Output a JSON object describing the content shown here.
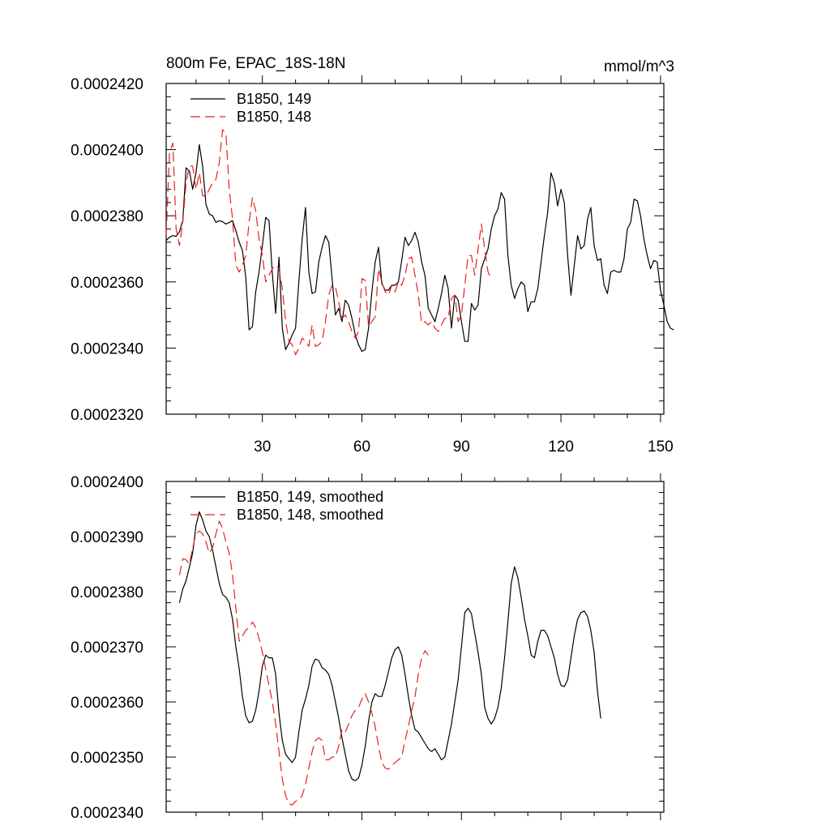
{
  "chart_data": [
    {
      "type": "line",
      "title": "800m Fe, EPAC_18S-18N",
      "units": "mmol/m^3",
      "xlim": [
        1,
        151
      ],
      "ylim": [
        0.000232,
        0.000242
      ],
      "yticks": [
        "0.0002320",
        "0.0002340",
        "0.0002360",
        "0.0002380",
        "0.0002400",
        "0.0002420"
      ],
      "ytick_values": [
        0.000232,
        0.000234,
        0.000236,
        0.000238,
        0.00024,
        0.000242
      ],
      "xticks": [
        "30",
        "60",
        "90",
        "120",
        "150"
      ],
      "xtick_values": [
        30,
        60,
        90,
        120,
        150
      ],
      "legend_position": "top-left",
      "series": [
        {
          "name": "B1850, 149",
          "color": "#000000",
          "dash": "solid",
          "x_start": 1,
          "values": [
            2.3725,
            2.3735,
            2.374,
            2.3738,
            2.3752,
            2.3785,
            2.3945,
            2.3935,
            2.388,
            2.393,
            2.4015,
            2.395,
            2.3835,
            2.3805,
            2.38,
            2.378,
            2.3785,
            2.3782,
            2.3775,
            2.378,
            2.3785,
            2.3755,
            2.372,
            2.3695,
            2.3615,
            2.3455,
            2.3465,
            2.357,
            2.363,
            2.371,
            2.3795,
            2.3785,
            2.3625,
            2.3505,
            2.3675,
            2.346,
            2.3395,
            2.3415,
            2.344,
            2.346,
            2.36,
            2.373,
            2.3825,
            2.363,
            2.3565,
            2.357,
            2.366,
            2.3705,
            2.374,
            2.372,
            2.361,
            2.35,
            2.352,
            2.348,
            2.3545,
            2.353,
            2.349,
            2.344,
            2.341,
            2.339,
            2.3395,
            2.346,
            2.357,
            2.366,
            2.3705,
            2.3595,
            2.3575,
            2.3575,
            2.359,
            2.359,
            2.36,
            2.3665,
            2.3735,
            2.371,
            2.3725,
            2.375,
            2.372,
            2.366,
            2.362,
            2.352,
            2.35,
            2.348,
            2.352,
            2.3565,
            2.362,
            2.358,
            2.346,
            2.356,
            2.3545,
            2.348,
            2.342,
            2.342,
            2.3535,
            2.3515,
            2.353,
            2.364,
            2.367,
            2.37,
            2.376,
            2.38,
            2.382,
            2.387,
            2.385,
            2.368,
            2.359,
            2.355,
            2.358,
            2.36,
            2.359,
            2.351,
            2.354,
            2.354,
            2.358,
            2.366,
            2.374,
            2.381,
            2.393,
            2.39,
            2.383,
            2.388,
            2.384,
            2.368,
            2.356,
            2.365,
            2.374,
            2.37,
            2.371,
            2.379,
            2.3825,
            2.371,
            2.3665,
            2.367,
            2.359,
            2.3565,
            2.363,
            2.3635,
            2.363,
            2.363,
            2.367,
            2.376,
            2.378,
            2.385,
            2.3845,
            2.38,
            2.373,
            2.368,
            2.364,
            2.3665,
            2.366,
            2.3575,
            2.353,
            2.348,
            2.346,
            2.3455
          ]
        },
        {
          "name": "B1850, 148",
          "color": "#e62020",
          "dash": "dashed",
          "x_start": 1,
          "values": [
            2.374,
            2.399,
            2.402,
            2.376,
            2.371,
            2.378,
            2.39,
            2.395,
            2.395,
            2.388,
            2.393,
            2.386,
            2.386,
            2.388,
            2.39,
            2.391,
            2.396,
            2.406,
            2.405,
            2.388,
            2.379,
            2.365,
            2.363,
            2.365,
            2.368,
            2.378,
            2.3855,
            2.3815,
            2.373,
            2.368,
            2.36,
            2.362,
            2.364,
            2.365,
            2.364,
            2.358,
            2.348,
            2.342,
            2.341,
            2.338,
            2.34,
            2.343,
            2.342,
            2.3405,
            2.347,
            2.3405,
            2.341,
            2.342,
            2.348,
            2.356,
            2.359,
            2.3585,
            2.354,
            2.349,
            2.35,
            2.348,
            2.345,
            2.343,
            2.345,
            2.361,
            2.3605,
            2.3465,
            2.348,
            2.3495,
            2.364,
            2.36,
            2.357,
            2.356,
            2.359,
            2.357,
            2.36,
            2.359,
            2.362,
            2.367,
            2.3675,
            2.362,
            2.356,
            2.3475,
            2.348,
            2.347,
            2.348,
            2.346,
            2.345,
            2.347,
            2.349,
            2.349,
            2.355,
            2.356,
            2.348,
            2.35,
            2.359,
            2.368,
            2.368,
            2.362,
            2.37,
            2.3775,
            2.37,
            2.363,
            2.361
          ]
        }
      ]
    },
    {
      "type": "line",
      "ylim": [
        0.000234,
        0.00024
      ],
      "yticks": [
        "0.0002340",
        "0.0002350",
        "0.0002360",
        "0.0002370",
        "0.0002380",
        "0.0002390",
        "0.0002400"
      ],
      "ytick_values": [
        0.000234,
        0.000235,
        0.000236,
        0.000237,
        0.000238,
        0.000239,
        0.00024
      ],
      "xlim": [
        1,
        151
      ],
      "xtick_values": [
        30,
        60,
        90,
        120,
        150
      ],
      "legend_position": "top-left",
      "series": [
        {
          "name": "B1850, 149, smoothed",
          "color": "#000000",
          "dash": "solid",
          "x_start": 5,
          "values": [
            2.378,
            2.3805,
            2.382,
            2.3845,
            2.387,
            2.392,
            2.3945,
            2.393,
            2.391,
            2.39,
            2.3875,
            2.3845,
            2.3815,
            2.3795,
            2.379,
            2.378,
            2.375,
            2.37,
            2.366,
            2.361,
            2.3575,
            2.3562,
            2.3565,
            2.3585,
            2.362,
            2.3665,
            2.3685,
            2.368,
            2.368,
            2.365,
            2.358,
            2.353,
            2.3505,
            2.3497,
            2.349,
            2.35,
            2.3545,
            2.3585,
            2.3605,
            2.363,
            2.3665,
            2.3678,
            2.3675,
            2.3662,
            2.3658,
            2.365,
            2.363,
            2.36,
            2.357,
            2.3535,
            2.3505,
            2.3475,
            2.346,
            2.3457,
            2.3462,
            2.3485,
            2.352,
            2.3565,
            2.36,
            2.3615,
            2.361,
            2.361,
            2.363,
            2.3655,
            2.368,
            2.3695,
            2.37,
            2.3685,
            2.365,
            2.361,
            2.3575,
            2.355,
            2.3545,
            2.3535,
            2.3525,
            2.3515,
            2.351,
            2.3515,
            2.3505,
            2.3495,
            2.35,
            2.353,
            2.356,
            2.36,
            2.364,
            2.37,
            2.3762,
            2.377,
            2.376,
            2.3725,
            2.369,
            2.365,
            2.359,
            2.357,
            2.356,
            2.357,
            2.359,
            2.3625,
            2.368,
            2.3745,
            2.3815,
            2.3845,
            2.3825,
            2.379,
            2.375,
            2.372,
            2.3685,
            2.368,
            2.371,
            2.373,
            2.373,
            2.372,
            2.37,
            2.368,
            2.365,
            2.363,
            2.3628,
            2.364,
            2.368,
            2.372,
            2.375,
            2.3762,
            2.3765,
            2.3755,
            2.373,
            2.369,
            2.362,
            2.357
          ]
        },
        {
          "name": "B1850, 148, smoothed",
          "color": "#e62020",
          "dash": "dashed",
          "x_start": 5,
          "values": [
            2.383,
            2.386,
            2.3858,
            2.385,
            2.388,
            2.3905,
            2.391,
            2.3905,
            2.389,
            2.387,
            2.388,
            2.3905,
            2.3928,
            2.3915,
            2.389,
            2.387,
            2.383,
            2.377,
            2.371,
            2.372,
            2.373,
            2.3735,
            2.3745,
            2.3735,
            2.3715,
            2.369,
            2.366,
            2.363,
            2.36,
            2.356,
            2.351,
            2.346,
            2.343,
            2.3415,
            2.3413,
            2.342,
            2.3422,
            2.343,
            2.345,
            2.348,
            2.351,
            2.353,
            2.3535,
            2.353,
            2.3495,
            2.3495,
            2.35,
            2.35,
            2.352,
            2.355,
            2.3545,
            2.356,
            2.3575,
            2.3585,
            2.359,
            2.3605,
            2.3615,
            2.36,
            2.358,
            2.3555,
            2.352,
            2.349,
            2.348,
            2.3478,
            2.3485,
            2.349,
            2.3495,
            2.35,
            2.353,
            2.3555,
            2.3585,
            2.361,
            2.365,
            2.368,
            2.3693,
            2.3685
          ]
        }
      ]
    }
  ]
}
